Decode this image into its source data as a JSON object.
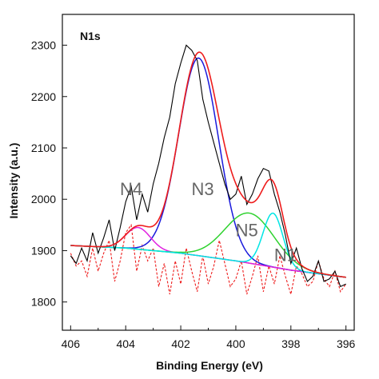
{
  "chart_data": {
    "type": "line",
    "title": "N1s",
    "xlabel": "Binding Energy (eV)",
    "ylabel": "Intensity (a.u.)",
    "xlim": [
      406.3,
      395.7
    ],
    "ylim": [
      1745,
      2360
    ],
    "x_reversed": true,
    "xticks": [
      406,
      404,
      402,
      400,
      398,
      396
    ],
    "yticks": [
      1800,
      1900,
      2000,
      2100,
      2200,
      2300
    ],
    "grid": false,
    "colors": {
      "raw": "#000000",
      "envelope": "#ee1c1c",
      "residual": "#ee1c1c",
      "N1": "#00e5e5",
      "N3": "#1a1adc",
      "N4": "#e020e0",
      "N5": "#2ed22e",
      "background": "#c8a000"
    },
    "annotations": [
      {
        "text": "N4",
        "x": 403.8,
        "y": 2008
      },
      {
        "text": "N3",
        "x": 401.2,
        "y": 2008
      },
      {
        "text": "N5",
        "x": 399.6,
        "y": 1928
      },
      {
        "text": "N1",
        "x": 398.2,
        "y": 1880
      }
    ],
    "background": {
      "x": [
        406,
        404,
        402,
        400,
        398,
        396
      ],
      "y": [
        1910,
        1905,
        1895,
        1880,
        1862,
        1848
      ]
    },
    "series": [
      {
        "name": "N3",
        "center": 401.35,
        "height": 2275,
        "fwhm": 1.7
      },
      {
        "name": "N4",
        "center": 403.55,
        "height": 1945,
        "fwhm": 1.05
      },
      {
        "name": "N5",
        "center": 399.5,
        "height": 1973,
        "fwhm": 2.1
      },
      {
        "name": "N1",
        "center": 398.65,
        "height": 1973,
        "fwhm": 0.85
      }
    ],
    "raw": {
      "x": [
        406.0,
        405.8,
        405.6,
        405.4,
        405.2,
        405.0,
        404.8,
        404.6,
        404.4,
        404.2,
        404.0,
        403.8,
        403.6,
        403.4,
        403.2,
        403.0,
        402.8,
        402.6,
        402.4,
        402.2,
        402.0,
        401.8,
        401.6,
        401.4,
        401.2,
        401.0,
        400.8,
        400.6,
        400.4,
        400.2,
        400.0,
        399.8,
        399.6,
        399.4,
        399.2,
        399.0,
        398.8,
        398.6,
        398.4,
        398.2,
        398.0,
        397.8,
        397.6,
        397.4,
        397.2,
        397.0,
        396.8,
        396.6,
        396.4,
        396.2,
        396.0
      ],
      "y": [
        1890,
        1875,
        1905,
        1880,
        1935,
        1895,
        1925,
        1960,
        1900,
        1945,
        1995,
        2025,
        1960,
        2010,
        1975,
        2030,
        2070,
        2120,
        2160,
        2225,
        2265,
        2300,
        2290,
        2270,
        2195,
        2150,
        2110,
        2070,
        2030,
        2000,
        2010,
        2045,
        1990,
        2010,
        2040,
        2060,
        2055,
        2010,
        1975,
        1930,
        1875,
        1905,
        1865,
        1840,
        1850,
        1880,
        1840,
        1845,
        1860,
        1830,
        1835
      ]
    },
    "residual": {
      "x": [
        406.0,
        405.8,
        405.6,
        405.4,
        405.2,
        405.0,
        404.8,
        404.6,
        404.4,
        404.2,
        404.0,
        403.8,
        403.6,
        403.4,
        403.2,
        403.0,
        402.8,
        402.6,
        402.4,
        402.2,
        402.0,
        401.8,
        401.6,
        401.4,
        401.2,
        401.0,
        400.8,
        400.6,
        400.4,
        400.2,
        400.0,
        399.8,
        399.6,
        399.4,
        399.2,
        399.0,
        398.8,
        398.6,
        398.4,
        398.2,
        398.0,
        397.8,
        397.6,
        397.4,
        397.2,
        397.0,
        396.8,
        396.6,
        396.4,
        396.2,
        396.0
      ],
      "y": [
        1895,
        1870,
        1880,
        1850,
        1905,
        1860,
        1895,
        1920,
        1840,
        1880,
        1935,
        1950,
        1860,
        1910,
        1880,
        1905,
        1830,
        1875,
        1815,
        1880,
        1835,
        1905,
        1860,
        1820,
        1890,
        1835,
        1870,
        1920,
        1875,
        1830,
        1845,
        1880,
        1815,
        1850,
        1890,
        1820,
        1870,
        1835,
        1890,
        1850,
        1815,
        1870,
        1855,
        1830,
        1840,
        1880,
        1845,
        1830,
        1860,
        1820,
        1835
      ]
    }
  }
}
